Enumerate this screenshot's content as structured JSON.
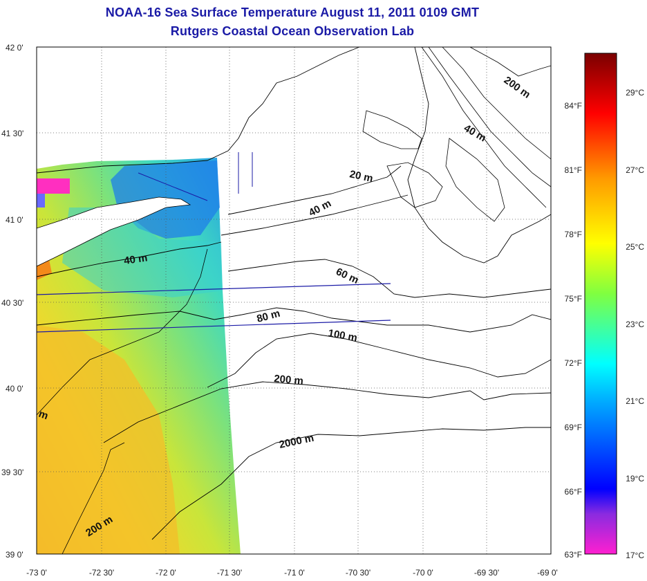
{
  "title_line1": "NOAA-16 Sea Surface Temperature August 11, 2011 0109 GMT",
  "title_line2": "Rutgers Coastal Ocean Observation Lab",
  "lat_labels": [
    "42 0'",
    "41 30'",
    "41 0'",
    "40 30'",
    "40 0'",
    "39 30'",
    "39 0'"
  ],
  "lon_labels": [
    "-73 0'",
    "-72 30'",
    "-72 0'",
    "-71 30'",
    "-71 0'",
    "-70 30'",
    "-70 0'",
    "-69 30'",
    "-69 0'"
  ],
  "contours": [
    {
      "label": "200 m"
    },
    {
      "label": "40 m"
    },
    {
      "label": "20 m"
    },
    {
      "label": "40 m"
    },
    {
      "label": "40 m"
    },
    {
      "label": "60 m"
    },
    {
      "label": "80 m"
    },
    {
      "label": "100 m"
    },
    {
      "label": "200 m"
    },
    {
      "label": "2000 m"
    },
    {
      "label": "200 m"
    },
    {
      "label": "m"
    }
  ],
  "colorbar": {
    "fahrenheit": [
      "84°F",
      "81°F",
      "78°F",
      "75°F",
      "72°F",
      "69°F",
      "66°F",
      "63°F"
    ],
    "celsius": [
      "29°C",
      "27°C",
      "25°C",
      "23°C",
      "21°C",
      "19°C",
      "17°C"
    ],
    "colors": [
      "#7a0000",
      "#ff0000",
      "#ff8000",
      "#ffff00",
      "#80ff00",
      "#00ffff",
      "#0080ff",
      "#0000ff",
      "#8000ff",
      "#ff00ff"
    ]
  },
  "colors": {
    "title": "#1a1aa6",
    "warm_sst": "#f7d020",
    "mid_sst": "#9ee04a",
    "cool_sst": "#22d6c8",
    "cold_sst": "#1e6bf0"
  }
}
